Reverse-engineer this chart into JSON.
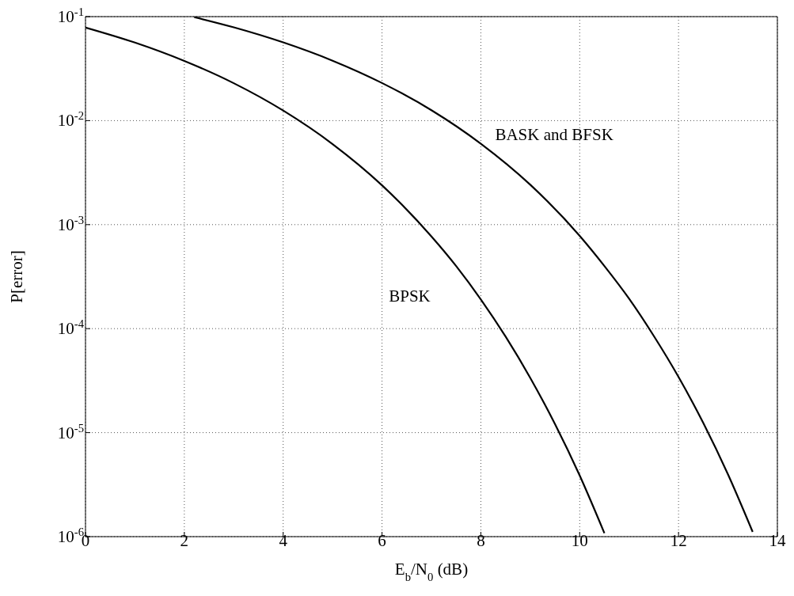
{
  "chart_data": {
    "type": "line",
    "xlabel": "E$_{b}$/N$_{0}$ (dB)",
    "ylabel": "P[error]",
    "log": "y",
    "grid": true,
    "legend": false,
    "marker": "none",
    "line_style": "solid",
    "xlim": [
      0,
      14
    ],
    "xticks": [
      0,
      2,
      4,
      6,
      8,
      10,
      12,
      14
    ],
    "ylim": [
      1e-06,
      0.1
    ],
    "yticks": [
      {
        "value": 1e-06,
        "label": "10$^{-6}$"
      },
      {
        "value": 1e-05,
        "label": "10$^{-5}$"
      },
      {
        "value": 0.0001,
        "label": "10$^{-4}$"
      },
      {
        "value": 0.001,
        "label": "10$^{-3}$"
      },
      {
        "value": 0.01,
        "label": "10$^{-2}$"
      },
      {
        "value": 0.1,
        "label": "10$^{-1}$"
      }
    ],
    "series": [
      {
        "name": "BPSK",
        "color": "#000000",
        "x": [
          0,
          1,
          2,
          3,
          4,
          5,
          6,
          7,
          7.5,
          8,
          8.5,
          9,
          9.5,
          10,
          10.5
        ],
        "values": [
          0.0786,
          0.0563,
          0.0375,
          0.0229,
          0.0125,
          0.00595,
          0.00239,
          0.00077,
          0.0004,
          0.000191,
          8.4e-05,
          3.36e-05,
          1.21e-05,
          3.87e-06,
          1.08e-06
        ]
      },
      {
        "name": "BASK and BFSK",
        "color": "#000000",
        "x": [
          2.2,
          3,
          4,
          5,
          6,
          7,
          8,
          9,
          10,
          10.5,
          11,
          11.5,
          12,
          12.5,
          13,
          13.5
        ],
        "values": [
          0.0989,
          0.0789,
          0.0565,
          0.0377,
          0.023,
          0.0126,
          0.006,
          0.00242,
          0.00078,
          0.0004,
          0.000194,
          8.5e-05,
          3.43e-05,
          1.24e-05,
          3.97e-06,
          1.11e-06
        ]
      }
    ]
  }
}
